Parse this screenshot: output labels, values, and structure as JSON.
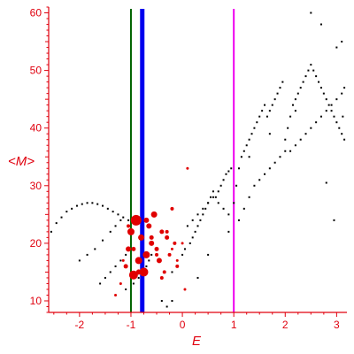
{
  "colors": {
    "axis": "#e0000e",
    "black_points": "#000000",
    "red_points": "#e00000",
    "line_green": "#006400",
    "line_blue": "#0000ee",
    "line_magenta": "#ee00ee"
  },
  "chart_data": {
    "type": "scatter",
    "title": "",
    "xlabel": "E",
    "ylabel": "<M>",
    "xlim": [
      -2.6,
      3.2
    ],
    "ylim": [
      8,
      61
    ],
    "xticks": [
      -2,
      -1,
      0,
      1,
      2,
      3
    ],
    "yticks": [
      10,
      20,
      30,
      40,
      50,
      60
    ],
    "grid": false,
    "vertical_lines": [
      {
        "x": -1.0,
        "color": "#006400"
      },
      {
        "x": -0.78,
        "color": "#0000ee"
      },
      {
        "x": 1.0,
        "color": "#ee00ee"
      }
    ],
    "series": [
      {
        "color": "#000000",
        "marker": "dot",
        "x": [
          -2.55,
          -2.45,
          -2.35,
          -2.25,
          -2.15,
          -2.05,
          -1.95,
          -1.85,
          -1.75,
          -1.65,
          -1.55,
          -1.45,
          -1.35,
          -1.25,
          -1.15,
          -1.05,
          -2.0,
          -1.85,
          -1.7,
          -1.55,
          -1.4,
          -1.3,
          -1.2,
          -1.6,
          -1.5,
          -1.4,
          -1.3,
          -1.2,
          -1.1,
          -1.3,
          -1.1,
          -0.95,
          -0.85,
          -0.75,
          -0.7,
          -0.65,
          -0.6,
          -0.2,
          -0.1,
          0.0,
          0.05,
          0.15,
          0.2,
          0.25,
          0.3,
          0.35,
          0.4,
          0.45,
          0.5,
          0.55,
          0.6,
          0.65,
          0.7,
          0.75,
          0.8,
          0.85,
          0.9,
          0.95,
          0.1,
          0.2,
          0.3,
          0.4,
          0.5,
          0.6,
          0.7,
          0.8,
          0.9,
          1.0,
          1.05,
          1.1,
          1.15,
          1.2,
          1.25,
          1.3,
          1.35,
          1.4,
          1.45,
          1.5,
          1.55,
          1.6,
          1.65,
          1.7,
          1.75,
          1.8,
          1.85,
          1.9,
          1.95,
          1.1,
          1.2,
          1.3,
          1.4,
          1.5,
          1.6,
          1.7,
          1.8,
          1.9,
          2.0,
          2.0,
          2.05,
          2.1,
          2.15,
          2.2,
          2.25,
          2.3,
          2.35,
          2.4,
          2.45,
          2.5,
          2.55,
          2.6,
          2.65,
          2.7,
          2.75,
          2.8,
          2.85,
          2.9,
          2.95,
          3.0,
          3.05,
          3.1,
          3.15,
          2.1,
          2.2,
          2.3,
          2.4,
          2.5,
          2.6,
          2.7,
          2.8,
          2.9,
          3.0,
          3.1,
          3.15,
          -0.4,
          -0.3,
          -0.2,
          0.3,
          0.5,
          0.9,
          1.3,
          1.7,
          2.2,
          2.5,
          2.7,
          3.0,
          3.1,
          2.8,
          2.95,
          3.12
        ],
        "y": [
          22,
          23.5,
          24.5,
          25.5,
          26,
          26.5,
          26.8,
          27,
          27,
          26.8,
          26.5,
          26,
          25.5,
          25,
          24.5,
          24,
          17,
          18,
          19,
          20.5,
          22,
          23,
          24,
          13,
          14,
          15,
          16,
          17,
          18,
          11,
          12,
          13,
          14,
          15,
          16,
          17,
          18,
          15,
          16,
          18,
          19,
          20,
          21,
          22,
          23,
          24,
          25,
          26,
          27,
          28,
          29,
          28,
          29,
          30,
          31,
          32,
          32.5,
          33,
          23,
          24,
          25,
          26,
          27,
          28,
          27,
          26,
          25,
          27,
          30,
          33,
          35,
          36,
          37,
          38,
          39,
          40,
          41,
          42,
          43,
          44,
          42,
          43,
          44,
          45,
          46,
          47,
          48,
          24,
          26,
          28,
          30,
          31,
          32,
          33,
          34,
          35,
          36,
          38,
          40,
          42,
          44,
          45,
          46,
          47,
          48,
          49,
          50,
          51,
          50,
          49,
          48,
          47,
          46,
          45,
          44,
          43,
          42,
          41,
          40,
          39,
          38,
          36,
          37,
          38,
          39,
          40,
          41,
          42,
          43,
          44,
          45,
          46,
          47,
          10,
          9,
          10,
          14,
          18,
          22,
          35,
          39,
          43,
          60,
          58,
          54,
          55,
          30.5,
          24,
          42
        ]
      },
      {
        "color": "#e00000",
        "marker": "circle",
        "x": [
          -1.1,
          -1.05,
          -1.0,
          -0.95,
          -0.9,
          -0.85,
          -0.8,
          -0.75,
          -0.7,
          -0.65,
          -0.6,
          -0.55,
          -0.5,
          -0.45,
          -0.4,
          -0.35,
          -0.3,
          -0.25,
          -0.2,
          -0.15,
          -0.1,
          -1.3,
          -1.2,
          -1.15,
          -1.05,
          -0.95,
          -0.85,
          -0.7,
          -0.6,
          -0.5,
          -0.4,
          -0.3,
          -0.2,
          -0.1,
          0.0,
          0.05,
          0.1
        ],
        "y": [
          16,
          19,
          22,
          14.5,
          24,
          17,
          21,
          15,
          18,
          23,
          20,
          25,
          19,
          17,
          22,
          15,
          21,
          18,
          26,
          20,
          16,
          11,
          13,
          17,
          23,
          19,
          15,
          24,
          21,
          18,
          14,
          22,
          19,
          17,
          20,
          12,
          33
        ],
        "size": [
          2.5,
          3,
          4,
          5,
          6,
          4,
          3.5,
          5,
          4,
          3,
          3,
          3.5,
          2.5,
          3,
          2.5,
          2,
          2.5,
          2,
          2,
          2,
          2,
          1.5,
          1.5,
          1.5,
          2,
          2.5,
          3,
          3,
          2.5,
          2,
          2,
          2,
          1.5,
          1.5,
          1.5,
          1.5,
          1.5
        ]
      }
    ]
  }
}
